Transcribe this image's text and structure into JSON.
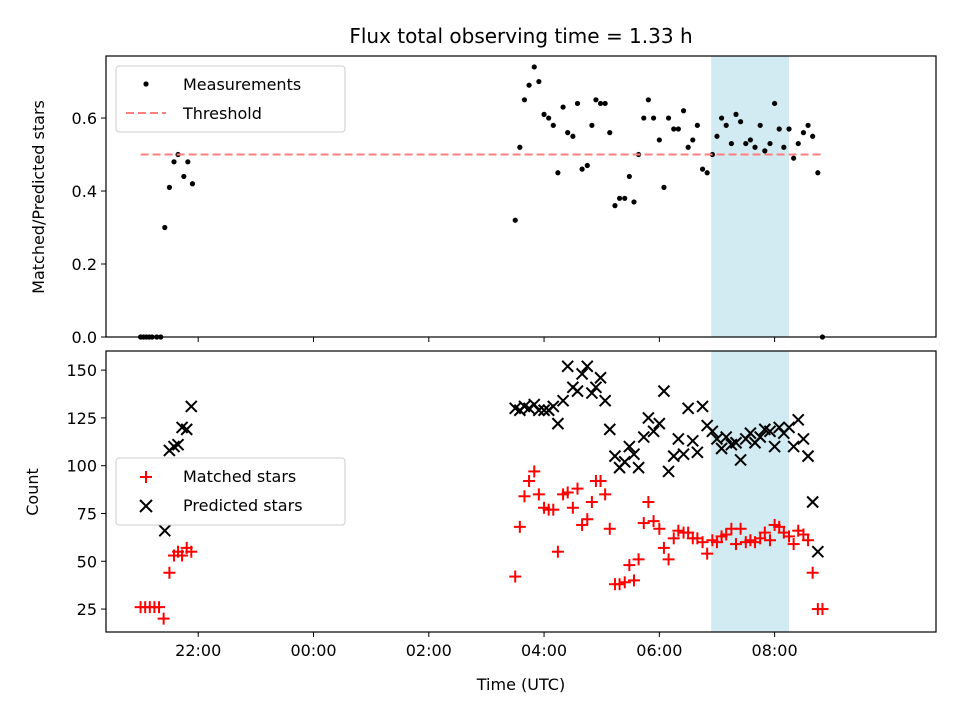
{
  "chart_data": {
    "title": "Flux total observing time = 1.33 h",
    "xlabel": "Time (UTC)",
    "x_unit": "hours UTC relative to 00:00 (negative = previous day)",
    "x_ticks": [
      {
        "value": -2,
        "label": "22:00"
      },
      {
        "value": 0,
        "label": "00:00"
      },
      {
        "value": 2,
        "label": "02:00"
      },
      {
        "value": 4,
        "label": "04:00"
      },
      {
        "value": 6,
        "label": "06:00"
      },
      {
        "value": 8,
        "label": "08:00"
      }
    ],
    "xlim": [
      -3.6,
      10.8
    ],
    "shaded_region": {
      "x0": 6.9,
      "x1": 8.25,
      "color": "#add8e6"
    },
    "panels": [
      {
        "type": "scatter",
        "ylabel": "Matched/Predicted stars",
        "ylim": [
          0,
          0.77
        ],
        "y_ticks": [
          {
            "value": 0,
            "label": "0.0"
          },
          {
            "value": 0.2,
            "label": "0.2"
          },
          {
            "value": 0.4,
            "label": "0.4"
          },
          {
            "value": 0.6,
            "label": "0.6"
          }
        ],
        "legend": {
          "position": "upper-left"
        },
        "series": [
          {
            "name": "Measurements",
            "marker": "dot",
            "color": "#000000",
            "points": [
              [
                -3.0,
                0
              ],
              [
                -2.95,
                0
              ],
              [
                -2.9,
                0
              ],
              [
                -2.85,
                0
              ],
              [
                -2.8,
                0
              ],
              [
                -2.72,
                0
              ],
              [
                -2.65,
                0
              ],
              [
                -2.58,
                0.3
              ],
              [
                -2.5,
                0.41
              ],
              [
                -2.42,
                0.48
              ],
              [
                -2.35,
                0.5
              ],
              [
                -2.25,
                0.44
              ],
              [
                -2.18,
                0.48
              ],
              [
                -2.1,
                0.42
              ],
              [
                3.5,
                0.32
              ],
              [
                3.58,
                0.52
              ],
              [
                3.66,
                0.65
              ],
              [
                3.74,
                0.69
              ],
              [
                3.83,
                0.74
              ],
              [
                3.91,
                0.7
              ],
              [
                4.0,
                0.61
              ],
              [
                4.08,
                0.6
              ],
              [
                4.16,
                0.58
              ],
              [
                4.24,
                0.45
              ],
              [
                4.33,
                0.63
              ],
              [
                4.41,
                0.56
              ],
              [
                4.5,
                0.55
              ],
              [
                4.58,
                0.64
              ],
              [
                4.66,
                0.46
              ],
              [
                4.75,
                0.47
              ],
              [
                4.83,
                0.58
              ],
              [
                4.9,
                0.65
              ],
              [
                4.98,
                0.64
              ],
              [
                5.06,
                0.64
              ],
              [
                5.14,
                0.56
              ],
              [
                5.23,
                0.36
              ],
              [
                5.31,
                0.38
              ],
              [
                5.4,
                0.38
              ],
              [
                5.48,
                0.44
              ],
              [
                5.56,
                0.37
              ],
              [
                5.64,
                0.5
              ],
              [
                5.73,
                0.6
              ],
              [
                5.81,
                0.65
              ],
              [
                5.9,
                0.6
              ],
              [
                6.0,
                0.54
              ],
              [
                6.08,
                0.41
              ],
              [
                6.16,
                0.6
              ],
              [
                6.25,
                0.57
              ],
              [
                6.33,
                0.57
              ],
              [
                6.42,
                0.62
              ],
              [
                6.5,
                0.52
              ],
              [
                6.58,
                0.54
              ],
              [
                6.66,
                0.58
              ],
              [
                6.75,
                0.46
              ],
              [
                6.83,
                0.45
              ],
              [
                6.92,
                0.5
              ],
              [
                7.0,
                0.55
              ],
              [
                7.08,
                0.6
              ],
              [
                7.16,
                0.58
              ],
              [
                7.25,
                0.53
              ],
              [
                7.33,
                0.61
              ],
              [
                7.41,
                0.59
              ],
              [
                7.5,
                0.53
              ],
              [
                7.58,
                0.54
              ],
              [
                7.66,
                0.52
              ],
              [
                7.75,
                0.58
              ],
              [
                7.83,
                0.51
              ],
              [
                7.92,
                0.53
              ],
              [
                8.0,
                0.64
              ],
              [
                8.08,
                0.57
              ],
              [
                8.16,
                0.52
              ],
              [
                8.25,
                0.57
              ],
              [
                8.33,
                0.49
              ],
              [
                8.41,
                0.53
              ],
              [
                8.5,
                0.56
              ],
              [
                8.58,
                0.58
              ],
              [
                8.66,
                0.55
              ],
              [
                8.75,
                0.45
              ],
              [
                8.83,
                0
              ]
            ]
          },
          {
            "name": "Threshold",
            "type": "line",
            "style": "dashed",
            "color": "#ff7f7f",
            "points": [
              [
                -3.0,
                0.5
              ],
              [
                8.83,
                0.5
              ]
            ]
          }
        ]
      },
      {
        "type": "scatter",
        "ylabel": "Count",
        "ylim": [
          13,
          160
        ],
        "y_ticks": [
          {
            "value": 25,
            "label": "25"
          },
          {
            "value": 50,
            "label": "50"
          },
          {
            "value": 75,
            "label": "75"
          },
          {
            "value": 100,
            "label": "100"
          },
          {
            "value": 125,
            "label": "125"
          },
          {
            "value": 150,
            "label": "150"
          }
        ],
        "legend": {
          "position": "center-left"
        },
        "series": [
          {
            "name": "Matched stars",
            "marker": "plus",
            "color": "#ff0000",
            "points": [
              [
                -3.0,
                26
              ],
              [
                -2.92,
                26
              ],
              [
                -2.84,
                26
              ],
              [
                -2.76,
                26
              ],
              [
                -2.68,
                26
              ],
              [
                -2.6,
                20
              ],
              [
                -2.5,
                44
              ],
              [
                -2.42,
                53
              ],
              [
                -2.35,
                55
              ],
              [
                -2.28,
                53
              ],
              [
                -2.2,
                57
              ],
              [
                -2.12,
                55
              ],
              [
                3.5,
                42
              ],
              [
                3.58,
                68
              ],
              [
                3.66,
                84
              ],
              [
                3.74,
                92
              ],
              [
                3.83,
                97
              ],
              [
                3.91,
                85
              ],
              [
                4.0,
                78
              ],
              [
                4.08,
                77
              ],
              [
                4.16,
                77
              ],
              [
                4.24,
                55
              ],
              [
                4.33,
                85
              ],
              [
                4.41,
                86
              ],
              [
                4.5,
                78
              ],
              [
                4.58,
                88
              ],
              [
                4.66,
                69
              ],
              [
                4.75,
                72
              ],
              [
                4.83,
                81
              ],
              [
                4.9,
                92
              ],
              [
                4.98,
                92
              ],
              [
                5.06,
                85
              ],
              [
                5.14,
                67
              ],
              [
                5.23,
                38
              ],
              [
                5.31,
                38
              ],
              [
                5.4,
                39
              ],
              [
                5.48,
                48
              ],
              [
                5.56,
                40
              ],
              [
                5.64,
                51
              ],
              [
                5.73,
                70
              ],
              [
                5.81,
                81
              ],
              [
                5.9,
                71
              ],
              [
                6.0,
                67
              ],
              [
                6.08,
                57
              ],
              [
                6.16,
                51
              ],
              [
                6.25,
                62
              ],
              [
                6.33,
                66
              ],
              [
                6.42,
                65
              ],
              [
                6.5,
                65
              ],
              [
                6.58,
                62
              ],
              [
                6.66,
                62
              ],
              [
                6.75,
                60
              ],
              [
                6.83,
                54
              ],
              [
                6.92,
                61
              ],
              [
                7.0,
                60
              ],
              [
                7.08,
                63
              ],
              [
                7.16,
                64
              ],
              [
                7.25,
                67
              ],
              [
                7.33,
                59
              ],
              [
                7.41,
                67
              ],
              [
                7.5,
                60
              ],
              [
                7.58,
                61
              ],
              [
                7.66,
                60
              ],
              [
                7.75,
                62
              ],
              [
                7.83,
                65
              ],
              [
                7.92,
                61
              ],
              [
                8.0,
                69
              ],
              [
                8.08,
                68
              ],
              [
                8.16,
                65
              ],
              [
                8.25,
                63
              ],
              [
                8.33,
                59
              ],
              [
                8.41,
                66
              ],
              [
                8.5,
                64
              ],
              [
                8.58,
                61
              ],
              [
                8.66,
                44
              ],
              [
                8.75,
                25
              ],
              [
                8.83,
                25
              ]
            ]
          },
          {
            "name": "Predicted stars",
            "marker": "x",
            "color": "#000000",
            "points": [
              [
                -2.58,
                66
              ],
              [
                -2.5,
                108
              ],
              [
                -2.42,
                110
              ],
              [
                -2.35,
                111
              ],
              [
                -2.28,
                120
              ],
              [
                -2.2,
                119
              ],
              [
                -2.12,
                131
              ],
              [
                3.5,
                130
              ],
              [
                3.58,
                129
              ],
              [
                3.66,
                131
              ],
              [
                3.74,
                130
              ],
              [
                3.83,
                132
              ],
              [
                3.91,
                129
              ],
              [
                4.0,
                129
              ],
              [
                4.08,
                129
              ],
              [
                4.16,
                131
              ],
              [
                4.24,
                122
              ],
              [
                4.33,
                134
              ],
              [
                4.41,
                152
              ],
              [
                4.5,
                141
              ],
              [
                4.58,
                139
              ],
              [
                4.66,
                148
              ],
              [
                4.75,
                152
              ],
              [
                4.83,
                138
              ],
              [
                4.9,
                141
              ],
              [
                4.98,
                146
              ],
              [
                5.06,
                134
              ],
              [
                5.14,
                119
              ],
              [
                5.23,
                105
              ],
              [
                5.31,
                99
              ],
              [
                5.4,
                102
              ],
              [
                5.48,
                110
              ],
              [
                5.56,
                106
              ],
              [
                5.64,
                99
              ],
              [
                5.73,
                115
              ],
              [
                5.81,
                125
              ],
              [
                5.9,
                118
              ],
              [
                6.0,
                122
              ],
              [
                6.08,
                139
              ],
              [
                6.16,
                97
              ],
              [
                6.25,
                105
              ],
              [
                6.33,
                114
              ],
              [
                6.42,
                106
              ],
              [
                6.5,
                130
              ],
              [
                6.58,
                113
              ],
              [
                6.66,
                107
              ],
              [
                6.75,
                131
              ],
              [
                6.83,
                121
              ],
              [
                6.92,
                118
              ],
              [
                7.0,
                114
              ],
              [
                7.08,
                109
              ],
              [
                7.16,
                115
              ],
              [
                7.25,
                111
              ],
              [
                7.33,
                112
              ],
              [
                7.41,
                103
              ],
              [
                7.5,
                114
              ],
              [
                7.58,
                117
              ],
              [
                7.66,
                112
              ],
              [
                7.75,
                115
              ],
              [
                7.83,
                119
              ],
              [
                7.92,
                118
              ],
              [
                8.0,
                110
              ],
              [
                8.08,
                120
              ],
              [
                8.16,
                117
              ],
              [
                8.25,
                120
              ],
              [
                8.33,
                110
              ],
              [
                8.41,
                124
              ],
              [
                8.5,
                114
              ],
              [
                8.58,
                105
              ],
              [
                8.66,
                81
              ],
              [
                8.75,
                55
              ]
            ]
          }
        ]
      }
    ]
  }
}
